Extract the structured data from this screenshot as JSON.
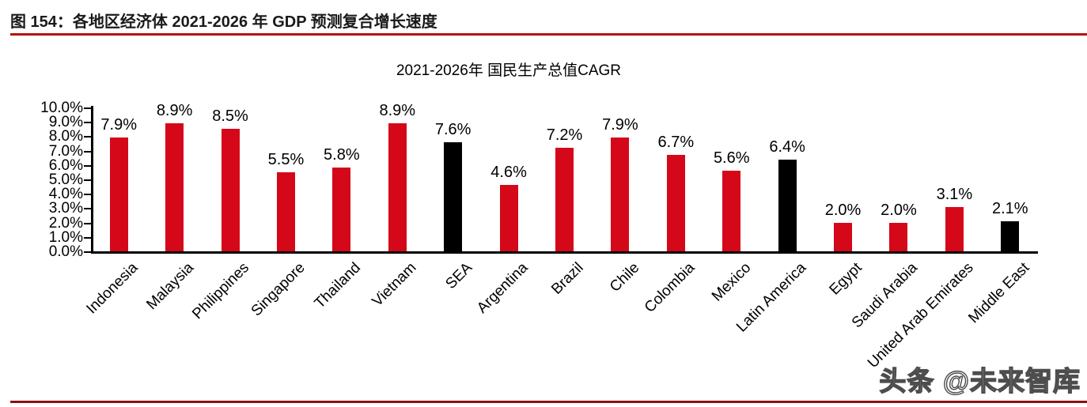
{
  "page": {
    "caption": "图 154：各地区经济体 2021-2026 年 GDP 预测复合增长速度",
    "watermark": "头条 @未来智库"
  },
  "colors": {
    "bar_red": "#d40819",
    "bar_black": "#000000",
    "axis": "#000000",
    "caption_rule": "#b31312",
    "bottom_rule": "#8e1012",
    "watermark_fill": "#ffffff",
    "watermark_outline": "#4d4d4d"
  },
  "chart_data": {
    "type": "bar",
    "title": "2021-2026年 国民生产总值CAGR",
    "categories": [
      "Indonesia",
      "Malaysia",
      "Philippines",
      "Singapore",
      "Thailand",
      "Vietnam",
      "SEA",
      "Argentina",
      "Brazil",
      "Chile",
      "Colombia",
      "Mexico",
      "Latin America",
      "Egypt",
      "Saudi Arabia",
      "United Arab Emirates",
      "Middle East"
    ],
    "values": [
      7.9,
      8.9,
      8.5,
      5.5,
      5.8,
      8.9,
      7.6,
      4.6,
      7.2,
      7.9,
      6.7,
      5.6,
      6.4,
      2.0,
      2.0,
      3.1,
      2.1
    ],
    "data_labels": [
      "7.9%",
      "8.9%",
      "8.5%",
      "5.5%",
      "5.8%",
      "8.9%",
      "7.6%",
      "4.6%",
      "7.2%",
      "7.9%",
      "6.7%",
      "5.6%",
      "6.4%",
      "2.0%",
      "2.0%",
      "3.1%",
      "2.1%"
    ],
    "bar_colors": [
      "red",
      "red",
      "red",
      "red",
      "red",
      "red",
      "black",
      "red",
      "red",
      "red",
      "red",
      "red",
      "black",
      "red",
      "red",
      "red",
      "black"
    ],
    "xlabel": "",
    "ylabel": "",
    "y_ticks": [
      "0.0%",
      "1.0%",
      "2.0%",
      "3.0%",
      "4.0%",
      "5.0%",
      "6.0%",
      "7.0%",
      "8.0%",
      "9.0%",
      "10.0%"
    ],
    "ylim": [
      0,
      10
    ],
    "grid": false,
    "legend": "none",
    "data_label_position": "above-bar",
    "x_label_rotation_deg": 45
  }
}
